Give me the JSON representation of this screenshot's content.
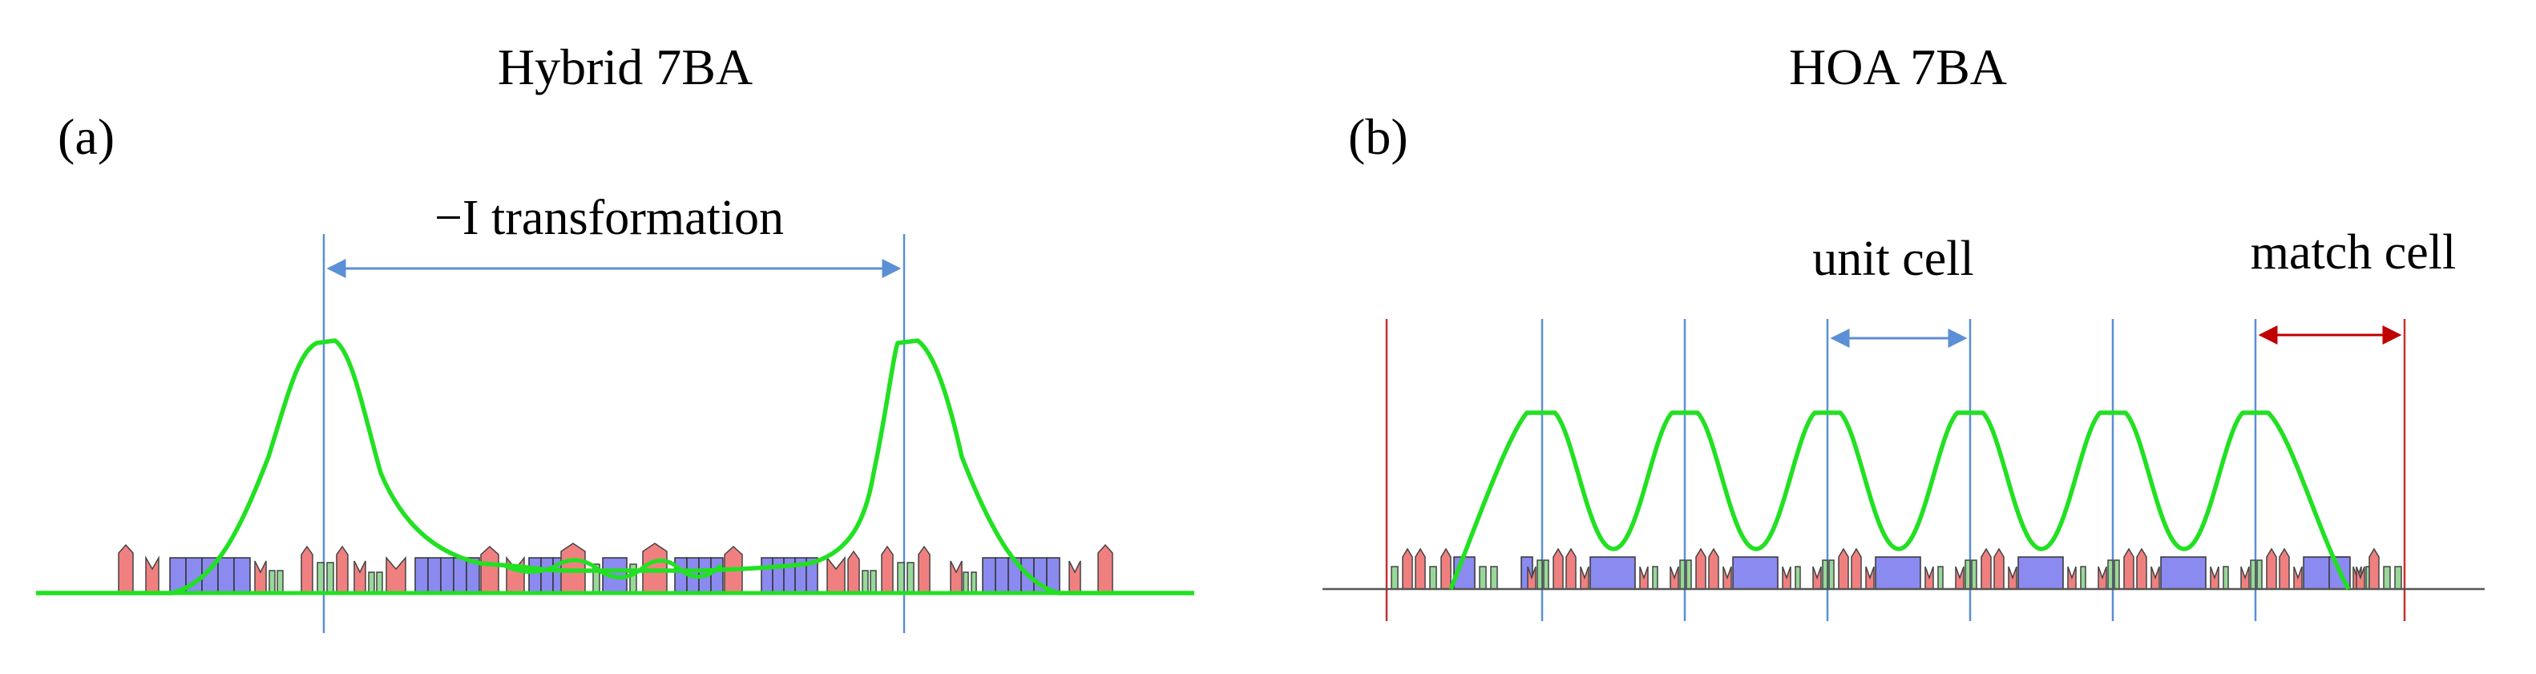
{
  "panels": [
    {
      "id": "a",
      "title": "Hybrid 7BA",
      "panel_label": "(a)",
      "annotations": [
        "−I transformation"
      ]
    },
    {
      "id": "b",
      "title": "HOA 7BA",
      "panel_label": "(b)",
      "annotations": [
        "unit cell",
        "match cell"
      ]
    }
  ],
  "colors": {
    "beta_function": "#22e022",
    "dipole": "#8a8af0",
    "quadrupole": "#f08080",
    "sextupole": "#98d898",
    "marker_line": "#5b8fd6",
    "match_line": "#c83030",
    "baseline": "#000000"
  }
}
